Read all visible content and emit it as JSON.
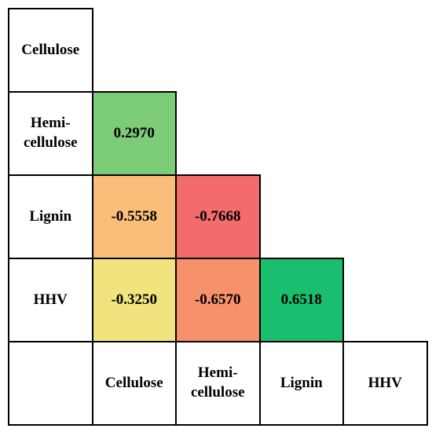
{
  "table": {
    "row_labels": [
      "Cellulose",
      "Hemi-\ncellulose",
      "Lignin",
      "HHV"
    ],
    "col_labels": [
      "Cellulose",
      "Hemi-\ncellulose",
      "Lignin",
      "HHV"
    ],
    "rows": [
      [],
      [
        {
          "text": "0.2970",
          "color": "#7dcd78"
        }
      ],
      [
        {
          "text": "-0.5558",
          "color": "#fbbe7a"
        },
        {
          "text": "-0.7668",
          "color": "#f46b6b"
        }
      ],
      [
        {
          "text": "-0.3250",
          "color": "#f1e47e"
        },
        {
          "text": "-0.6570",
          "color": "#f7916c"
        },
        {
          "text": "0.6518",
          "color": "#19bf6f"
        }
      ]
    ]
  }
}
